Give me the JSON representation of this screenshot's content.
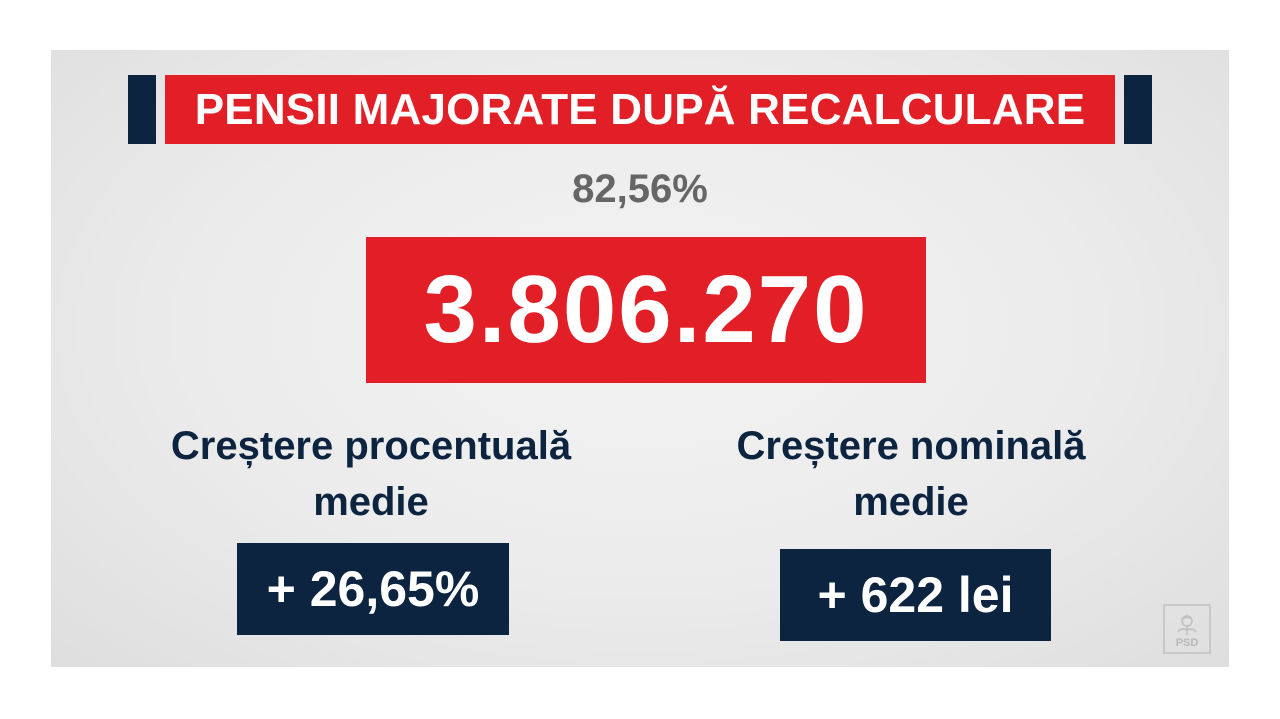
{
  "header": {
    "title": "PENSII MAJORATE DUPĂ RECALCULARE"
  },
  "summary": {
    "share_percent": "82,56%",
    "total_count": "3.806.270"
  },
  "stats": [
    {
      "label_line1": "Creștere procentuală",
      "label_line2": "medie",
      "value": "+ 26,65%"
    },
    {
      "label_line1": "Creștere nominală",
      "label_line2": "medie",
      "value": "+ 622 lei"
    }
  ],
  "logo": {
    "text": "PSD",
    "icon": "rose-icon"
  },
  "colors": {
    "accent_red": "#e21f26",
    "navy": "#0c2440",
    "gray_text": "#666666",
    "background": "#ebebeb"
  }
}
